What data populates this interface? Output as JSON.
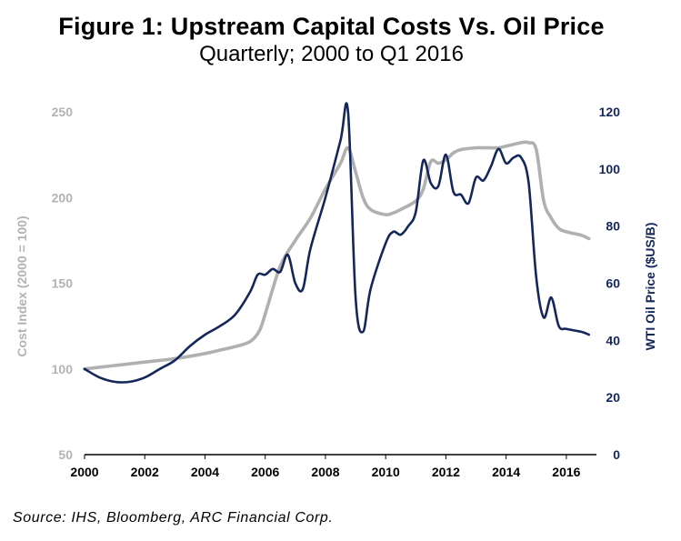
{
  "title": "Figure 1: Upstream Capital Costs Vs. Oil Price",
  "subtitle": "Quarterly; 2000 to Q1 2016",
  "source": "Source: IHS, Bloomberg, ARC Financial Corp.",
  "colors": {
    "cost": "#b0b0b0",
    "oil": "#14275a"
  },
  "chart_data": {
    "type": "line",
    "ylabel": "Cost Index (2000 = 100)",
    "y2label": "WTI Oil Price ($US/B)",
    "xlim": [
      2000,
      2017
    ],
    "ylim": [
      50,
      250
    ],
    "y2lim": [
      0,
      120
    ],
    "xticks": [
      "2000",
      "2002",
      "2004",
      "2006",
      "2008",
      "2010",
      "2012",
      "2014",
      "2016"
    ],
    "yticks": [
      "50",
      "100",
      "150",
      "200",
      "250"
    ],
    "y2ticks": [
      "0",
      "20",
      "40",
      "60",
      "80",
      "100",
      "120"
    ],
    "grid": false,
    "series": [
      {
        "axis": "left",
        "x": [
          2000,
          2001,
          2002,
          2003,
          2004,
          2004.5,
          2005,
          2005.5,
          2005.8,
          2006,
          2006.5,
          2007,
          2007.5,
          2008,
          2008.5,
          2008.75,
          2009,
          2009.25,
          2009.5,
          2010,
          2010.25,
          2010.5,
          2011,
          2011.25,
          2011.5,
          2011.75,
          2012,
          2012.25,
          2012.5,
          2013,
          2013.25,
          2013.5,
          2013.75,
          2014,
          2014.25,
          2014.5,
          2014.75,
          2015,
          2015.25,
          2015.5,
          2015.75,
          2016,
          2016.5,
          2016.75
        ],
        "values": [
          100,
          102,
          104,
          106,
          109,
          111,
          113,
          116,
          122,
          132,
          160,
          175,
          188,
          205,
          220,
          229,
          215,
          200,
          193,
          190,
          191,
          193,
          198,
          205,
          221,
          220,
          222,
          226,
          228,
          229,
          229,
          229,
          229,
          230,
          231,
          232,
          232,
          228,
          198,
          188,
          182,
          180,
          178,
          176
        ]
      },
      {
        "axis": "right",
        "x": [
          2000,
          2000.5,
          2001,
          2001.5,
          2002,
          2002.5,
          2003,
          2003.5,
          2004,
          2004.5,
          2005,
          2005.5,
          2005.75,
          2006,
          2006.25,
          2006.5,
          2006.75,
          2007,
          2007.25,
          2007.5,
          2008,
          2008.5,
          2008.75,
          2009,
          2009.25,
          2009.5,
          2010,
          2010.25,
          2010.5,
          2010.75,
          2011,
          2011.25,
          2011.5,
          2011.75,
          2012,
          2012.25,
          2012.5,
          2012.75,
          2013,
          2013.25,
          2013.5,
          2013.75,
          2014,
          2014.25,
          2014.5,
          2014.75,
          2015,
          2015.25,
          2015.5,
          2015.75,
          2016,
          2016.5,
          2016.75
        ],
        "values": [
          30,
          27,
          25.5,
          25.5,
          27,
          30,
          33,
          38,
          42,
          45,
          49,
          57,
          63,
          63,
          65,
          64,
          70,
          60,
          58,
          72,
          90,
          110,
          120,
          55,
          43,
          58,
          74,
          78,
          77,
          80,
          85,
          103,
          95,
          94,
          105,
          92,
          91,
          88,
          97,
          96,
          101,
          107,
          102,
          104,
          104,
          95,
          62,
          48,
          55,
          45,
          44,
          43,
          42
        ]
      }
    ]
  }
}
